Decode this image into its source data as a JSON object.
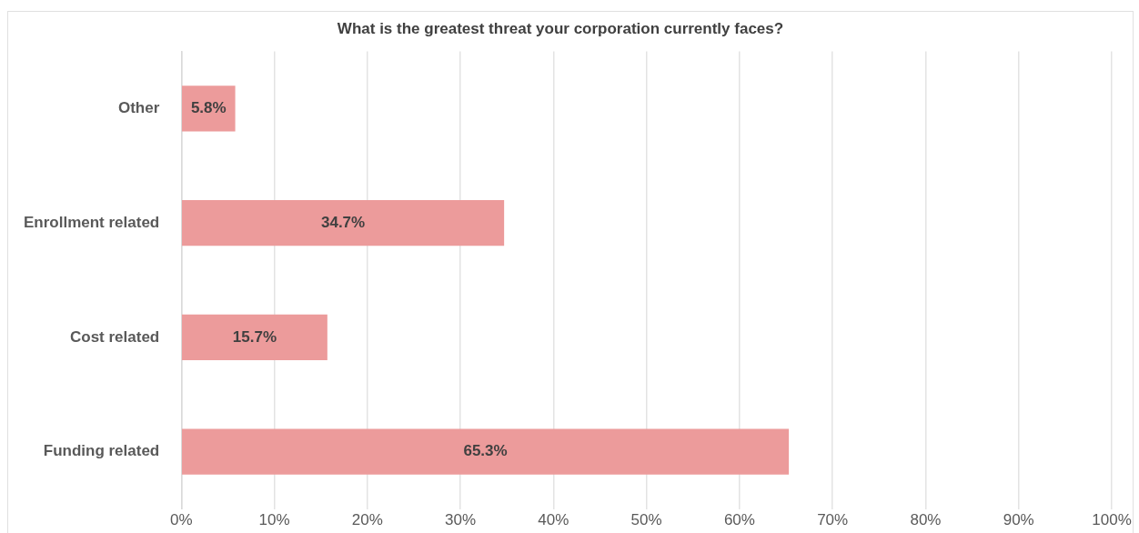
{
  "chart_data": {
    "type": "bar",
    "orientation": "horizontal",
    "title": "What is the greatest threat your corporation currently faces?",
    "categories": [
      "Other",
      "Enrollment related",
      "Cost related",
      "Funding related"
    ],
    "values": [
      5.8,
      34.7,
      15.7,
      65.3
    ],
    "color": "#ec9b9b",
    "value_labels": [
      "5.8%",
      "34.7%",
      "15.7%",
      "65.3%"
    ],
    "xlim": [
      0,
      100
    ],
    "xticks": [
      {
        "value": 0,
        "label": "0%"
      },
      {
        "value": 10,
        "label": "10%"
      },
      {
        "value": 20,
        "label": "20%"
      },
      {
        "value": 30,
        "label": "30%"
      },
      {
        "value": 40,
        "label": "40%"
      },
      {
        "value": 50,
        "label": "50%"
      },
      {
        "value": 60,
        "label": "60%"
      },
      {
        "value": 70,
        "label": "70%"
      },
      {
        "value": 80,
        "label": "80%"
      },
      {
        "value": 90,
        "label": "90%"
      },
      {
        "value": 100,
        "label": "100%"
      }
    ],
    "grid": "x",
    "legend": false
  }
}
